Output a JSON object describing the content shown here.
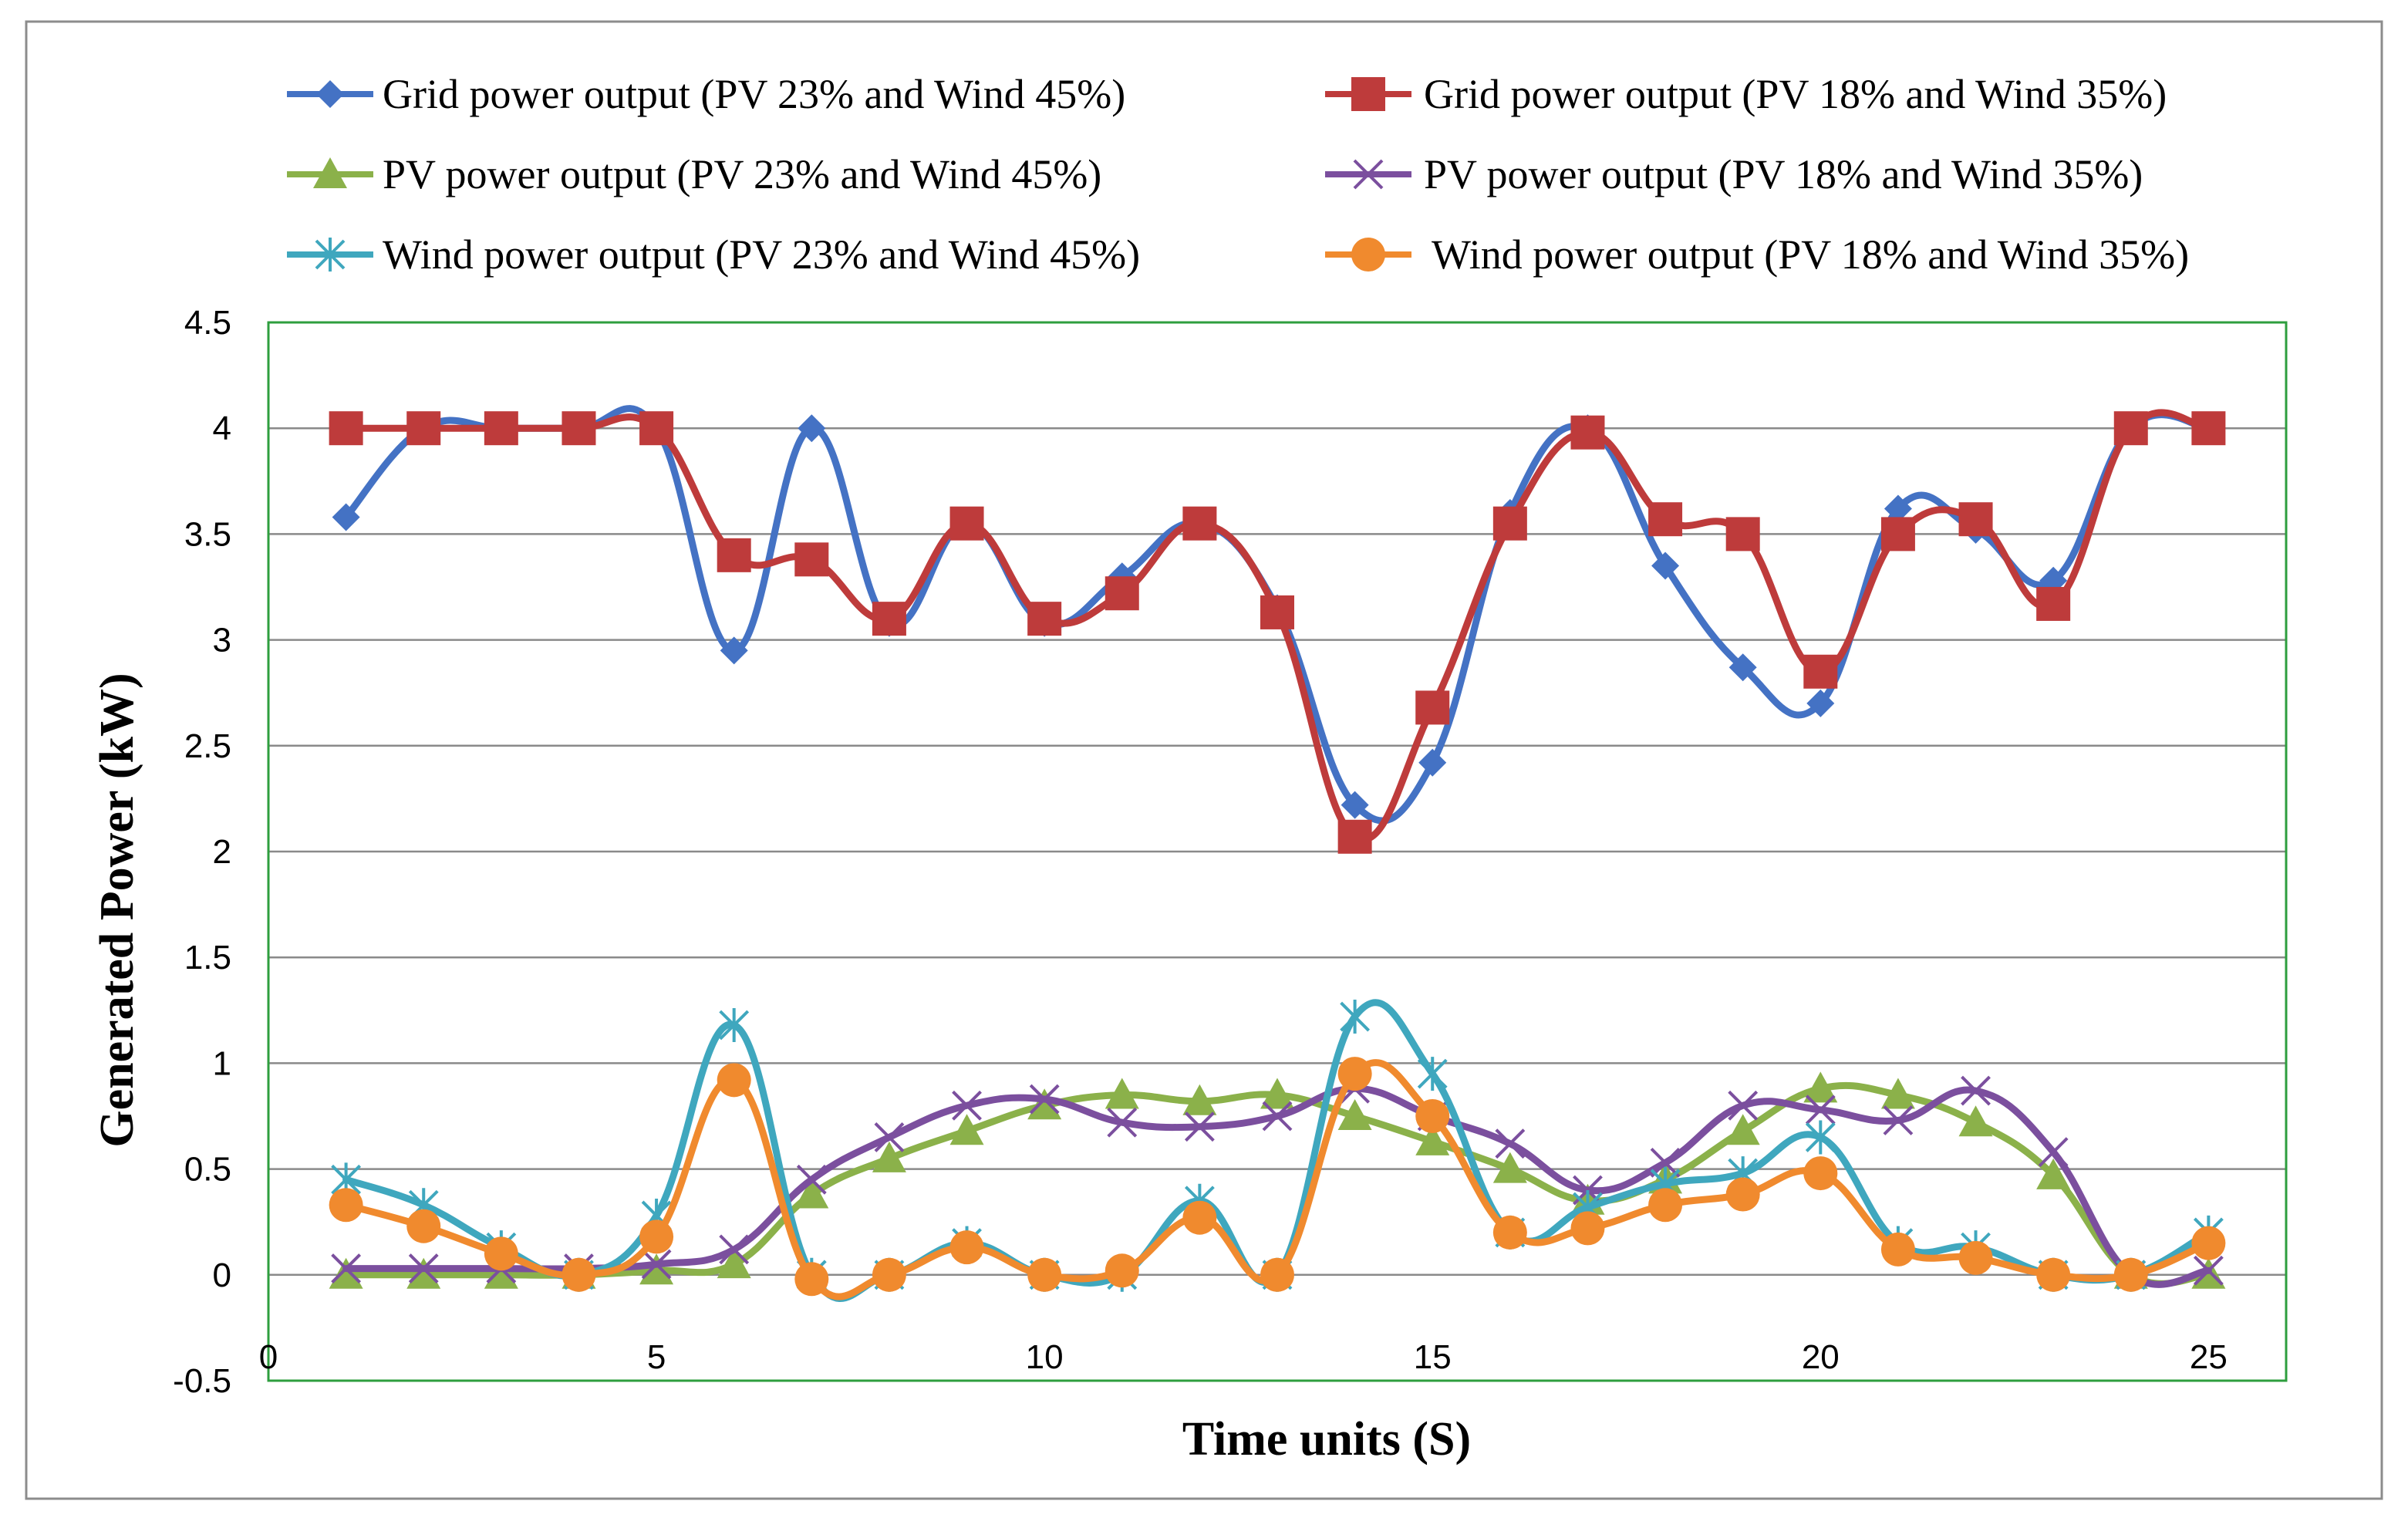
{
  "chart_data": {
    "type": "line",
    "title": "",
    "xlabel": "Time units (S)",
    "ylabel": "Generated  Power (kW)",
    "xlim": [
      0,
      26
    ],
    "ylim": [
      -0.5,
      4.5
    ],
    "xticks": [
      0,
      5,
      10,
      15,
      20,
      25
    ],
    "yticks": [
      -0.5,
      0,
      0.5,
      1,
      1.5,
      2,
      2.5,
      3,
      3.5,
      4,
      4.5
    ],
    "x": [
      1,
      2,
      3,
      4,
      5,
      6,
      7,
      8,
      9,
      10,
      11,
      12,
      13,
      14,
      15,
      16,
      17,
      18,
      19,
      20,
      21,
      22,
      23,
      24,
      25
    ],
    "grid": "horizontal",
    "legend_position": "top",
    "series": [
      {
        "name": "Grid power output (PV  23% and Wind  45%)",
        "color": "#4472C4",
        "marker": "diamond",
        "values": [
          3.58,
          4.0,
          4.0,
          4.0,
          4.0,
          2.95,
          4.0,
          3.08,
          3.55,
          3.08,
          3.3,
          3.55,
          3.15,
          2.22,
          2.42,
          3.6,
          4.0,
          3.35,
          2.87,
          2.7,
          3.62,
          3.52,
          3.28,
          4.0,
          4.0
        ]
      },
      {
        "name": "Grid power output (PV  18% and Wind  35%)",
        "color": "#BE3B3B",
        "marker": "square",
        "values": [
          4.0,
          4.0,
          4.0,
          4.0,
          4.0,
          3.4,
          3.38,
          3.1,
          3.55,
          3.1,
          3.22,
          3.55,
          3.13,
          2.07,
          2.68,
          3.55,
          3.98,
          3.57,
          3.5,
          2.85,
          3.5,
          3.57,
          3.17,
          4.0,
          4.0
        ]
      },
      {
        "name": "PV power output (PV 23% and Wind  45%)",
        "color": "#8BB14A",
        "marker": "triangle",
        "values": [
          0.0,
          0.0,
          0.0,
          0.0,
          0.02,
          0.05,
          0.38,
          0.55,
          0.68,
          0.8,
          0.85,
          0.82,
          0.85,
          0.75,
          0.63,
          0.5,
          0.35,
          0.45,
          0.68,
          0.88,
          0.85,
          0.72,
          0.47,
          0.0,
          0.0
        ]
      },
      {
        "name": "PV power output (PV  18% and Wind 35%)",
        "color": "#7B4F9E",
        "marker": "x",
        "values": [
          0.03,
          0.03,
          0.03,
          0.03,
          0.05,
          0.12,
          0.45,
          0.65,
          0.8,
          0.83,
          0.72,
          0.7,
          0.75,
          0.88,
          0.75,
          0.62,
          0.4,
          0.53,
          0.8,
          0.78,
          0.73,
          0.87,
          0.58,
          0.0,
          0.02
        ]
      },
      {
        "name": "Wind  power output (PV  23% and Wind 45%)",
        "color": "#3FA7BE",
        "marker": "asterisk",
        "values": [
          0.45,
          0.33,
          0.13,
          0.0,
          0.28,
          1.18,
          0.0,
          0.0,
          0.15,
          0.0,
          0.0,
          0.35,
          0.0,
          1.22,
          0.95,
          0.2,
          0.32,
          0.43,
          0.48,
          0.65,
          0.15,
          0.13,
          0.0,
          0.0,
          0.2
        ]
      },
      {
        "name": "Wind power output (PV 18% and Wind 35%)",
        "color": "#F08A2E",
        "marker": "circle",
        "values": [
          0.33,
          0.23,
          0.1,
          0.0,
          0.18,
          0.92,
          -0.02,
          0.0,
          0.13,
          0.0,
          0.02,
          0.27,
          0.0,
          0.95,
          0.75,
          0.2,
          0.22,
          0.33,
          0.38,
          0.48,
          0.12,
          0.08,
          0.0,
          0.0,
          0.15
        ]
      }
    ]
  }
}
